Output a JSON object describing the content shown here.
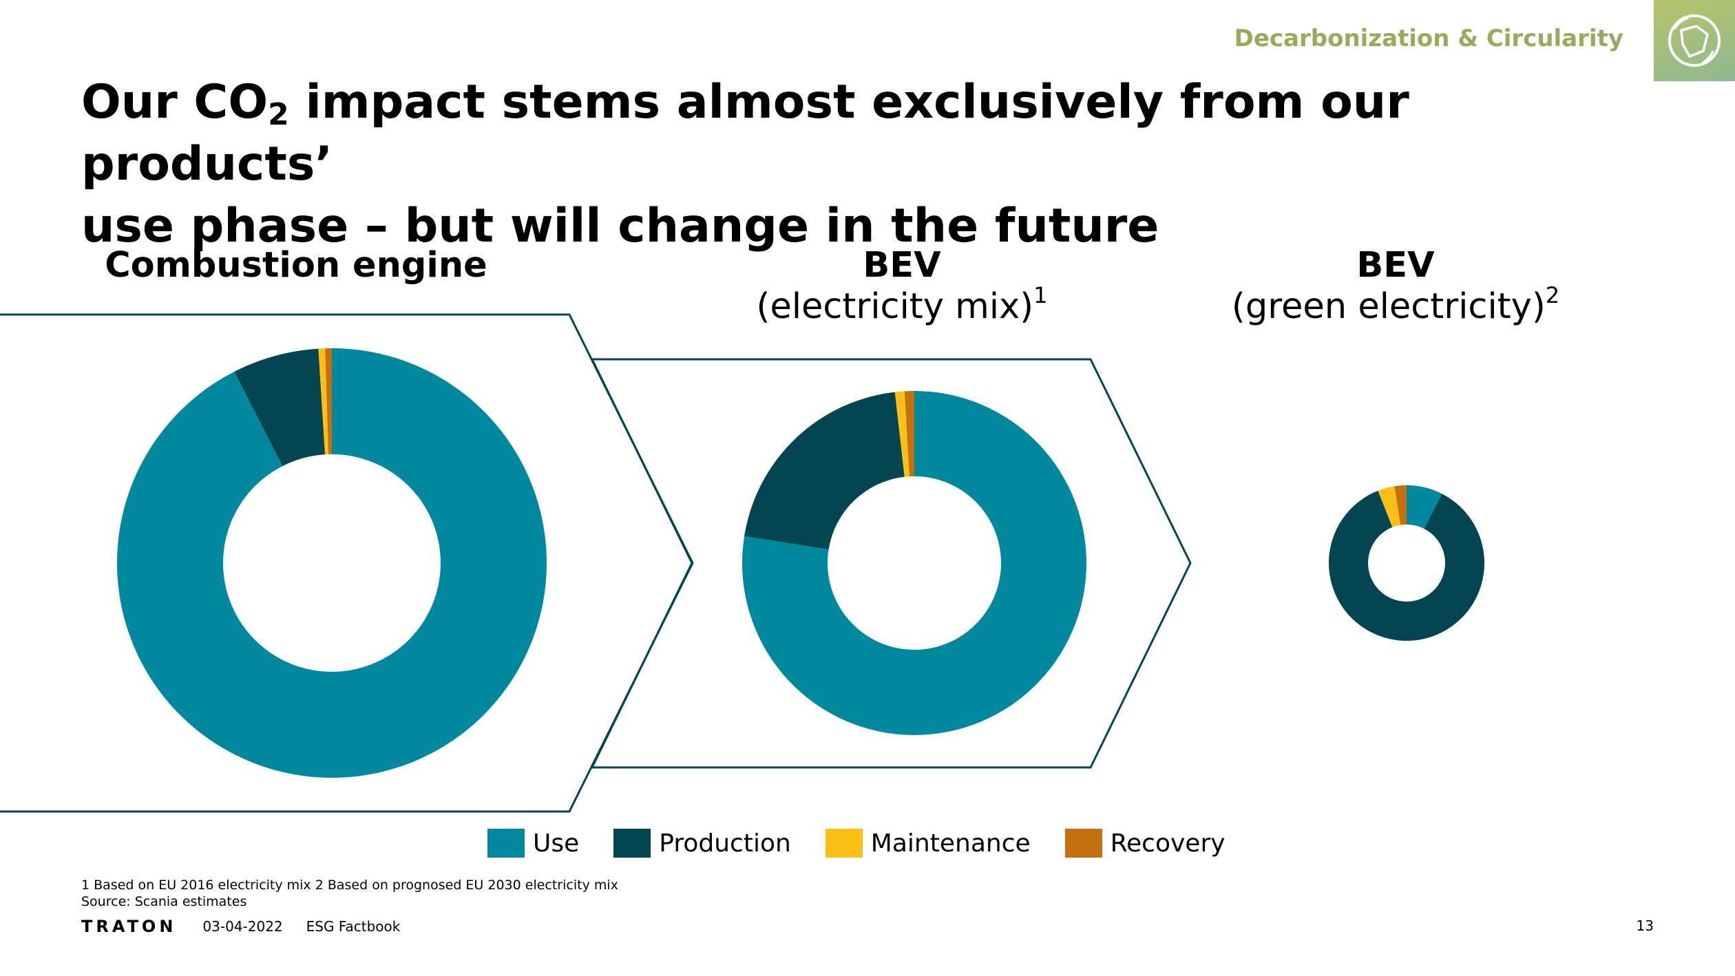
{
  "header": {
    "topic": "Decarbonization & Circularity",
    "badge_icon": "globe-recycle-icon"
  },
  "title": {
    "line1_pre": "Our CO",
    "line1_sub": "2",
    "line1_post": " impact stems almost exclusively from our products’",
    "line2": "use phase – but will change in the future"
  },
  "chart_titles": [
    {
      "bold": "Combustion engine",
      "sub": "",
      "sup": ""
    },
    {
      "bold": "BEV",
      "sub": "(electricity mix)",
      "sup": "1"
    },
    {
      "bold": "BEV",
      "sub": "(green electricity)",
      "sup": "2"
    }
  ],
  "colors": {
    "use": "#00899e",
    "production": "#034652",
    "maintenance": "#fbbf15",
    "recovery": "#c5700e",
    "outline": "#034652"
  },
  "chart_data": [
    {
      "type": "pie",
      "title": "Combustion engine",
      "categories": [
        "Use",
        "Production",
        "Maintenance",
        "Recovery"
      ],
      "values": [
        92.5,
        6.5,
        0.5,
        0.5
      ]
    },
    {
      "type": "pie",
      "title": "BEV (electricity mix)",
      "categories": [
        "Use",
        "Production",
        "Maintenance",
        "Recovery"
      ],
      "values": [
        77.5,
        20.7,
        0.9,
        0.9
      ]
    },
    {
      "type": "pie",
      "title": "BEV (green electricity)",
      "categories": [
        "Use",
        "Production",
        "Maintenance",
        "Recovery"
      ],
      "values": [
        7.5,
        86.5,
        3.5,
        2.5
      ]
    }
  ],
  "legend": [
    {
      "label": "Use",
      "key": "use"
    },
    {
      "label": "Production",
      "key": "production"
    },
    {
      "label": "Maintenance",
      "key": "maintenance"
    },
    {
      "label": "Recovery",
      "key": "recovery"
    }
  ],
  "footnotes": {
    "line1": "1 Based on EU 2016 electricity mix 2 Based on prognosed EU 2030 electricity mix",
    "line2": "Source: Scania estimates"
  },
  "footer": {
    "logo": "TRATON",
    "date": "03-04-2022",
    "doc": "ESG Factbook",
    "page": "13"
  }
}
